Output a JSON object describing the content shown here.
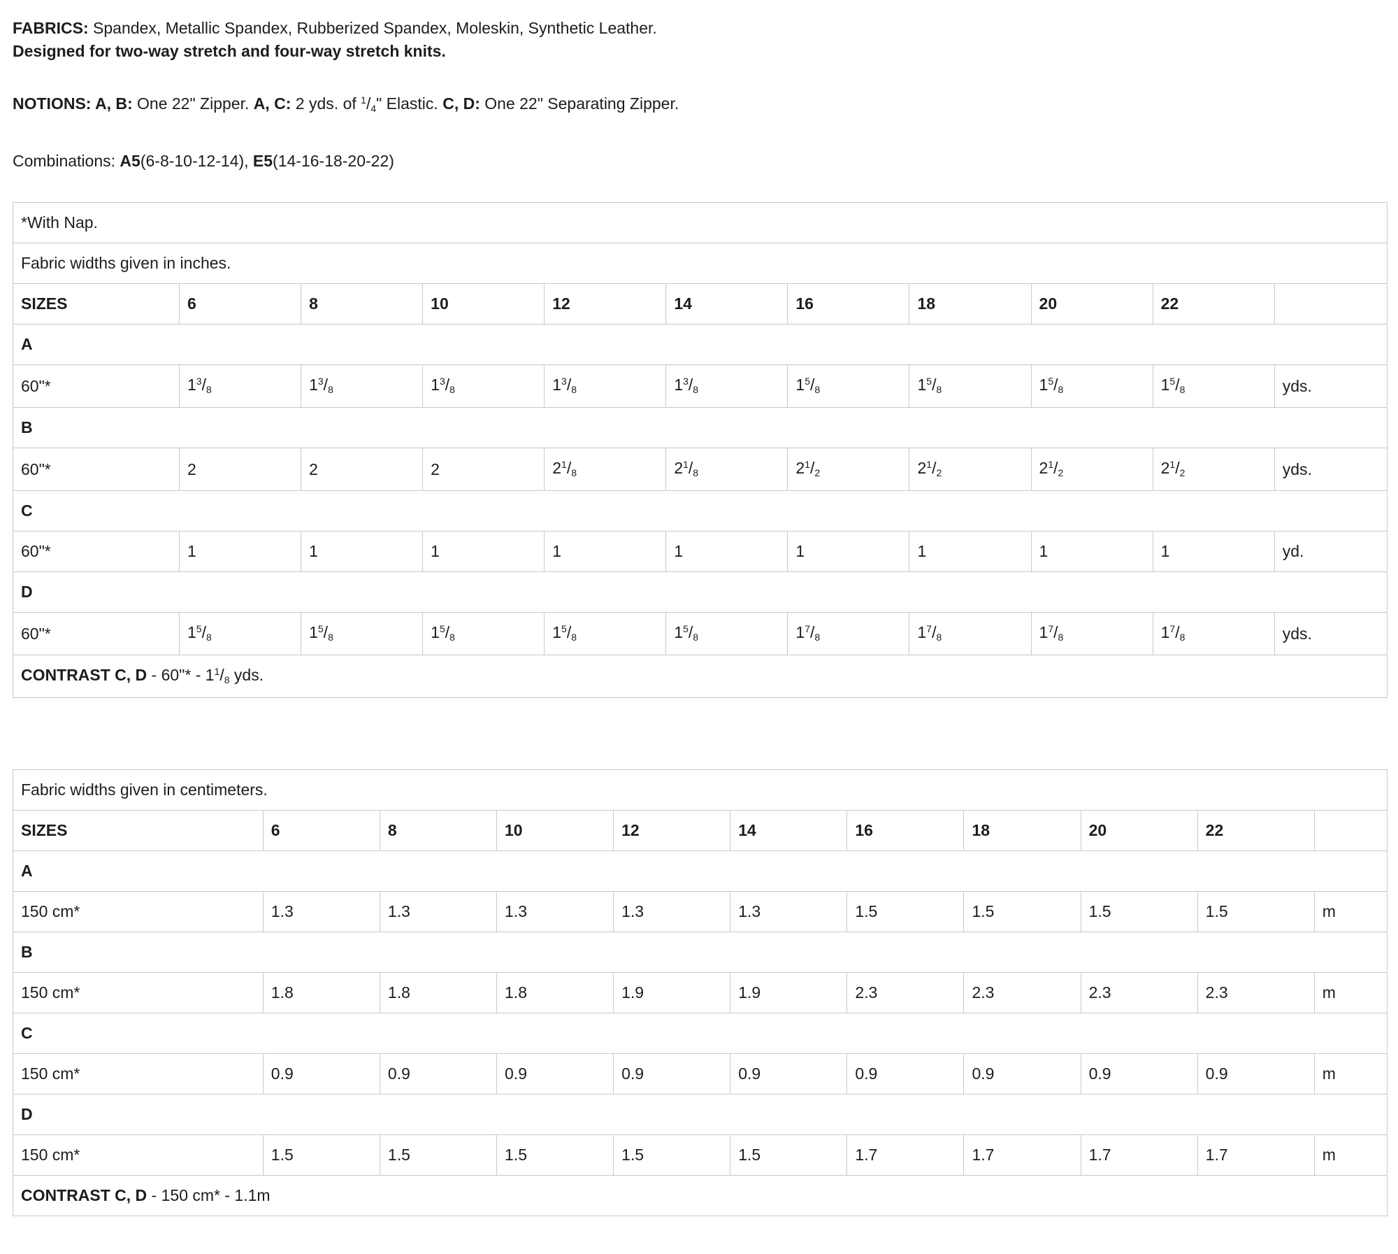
{
  "page": {
    "background": "#ffffff",
    "text_color": "#1d1d1d",
    "table_border_color": "#c9c9c9"
  },
  "intro": {
    "fabrics_line": [
      {
        "text": "FABRICS:",
        "bold": true
      },
      {
        "text": " Spandex, Metallic Spandex, Rubberized Spandex, Moleskin, Synthetic Leather.",
        "bold": false
      }
    ],
    "designed_line": [
      {
        "text": "Designed for two-way stretch and four-way stretch knits.",
        "bold": true
      }
    ],
    "notions_line": [
      {
        "text": "NOTIONS: A, B:",
        "bold": true
      },
      {
        "text": " One 22\" Zipper. ",
        "bold": false
      },
      {
        "text": "A, C:",
        "bold": true
      },
      {
        "text": " 2 yds. of ",
        "bold": false
      },
      {
        "frac": {
          "num": "1",
          "den": "4"
        }
      },
      {
        "text": "\" Elastic. ",
        "bold": false
      },
      {
        "text": "C, D:",
        "bold": true
      },
      {
        "text": " One 22\" Separating Zipper.",
        "bold": false
      }
    ],
    "combinations_line": [
      {
        "text": "Combinations: ",
        "bold": false
      },
      {
        "text": "A5",
        "bold": true
      },
      {
        "text": "(6-8-10-12-14), ",
        "bold": false
      },
      {
        "text": "E5",
        "bold": true
      },
      {
        "text": "(14-16-18-20-22)",
        "bold": false
      }
    ]
  },
  "tables": [
    {
      "name": "inches",
      "notes": [
        "*With Nap.",
        "Fabric widths given in inches."
      ],
      "sizes_label": "SIZES",
      "sizes": [
        "6",
        "8",
        "10",
        "12",
        "14",
        "16",
        "18",
        "20",
        "22"
      ],
      "sections": [
        {
          "view": "A",
          "width": "60\"*",
          "values": [
            "1 3/8",
            "1 3/8",
            "1 3/8",
            "1 3/8",
            "1 3/8",
            "1 5/8",
            "1 5/8",
            "1 5/8",
            "1 5/8"
          ],
          "unit": "yds."
        },
        {
          "view": "B",
          "width": "60\"*",
          "values": [
            "2",
            "2",
            "2",
            "2 1/8",
            "2 1/8",
            "2 1/2",
            "2 1/2",
            "2 1/2",
            "2 1/2"
          ],
          "unit": "yds."
        },
        {
          "view": "C",
          "width": "60\"*",
          "values": [
            "1",
            "1",
            "1",
            "1",
            "1",
            "1",
            "1",
            "1",
            "1"
          ],
          "unit": "yd."
        },
        {
          "view": "D",
          "width": "60\"*",
          "values": [
            "1 5/8",
            "1 5/8",
            "1 5/8",
            "1 5/8",
            "1 5/8",
            "1 7/8",
            "1 7/8",
            "1 7/8",
            "1 7/8"
          ],
          "unit": "yds."
        }
      ],
      "contrast": [
        {
          "text": "CONTRAST C, D",
          "bold": true
        },
        {
          "text": " - 60\"* - ",
          "bold": false
        },
        {
          "frac": {
            "whole": "1",
            "num": "1",
            "den": "8"
          }
        },
        {
          "text": " yds.",
          "bold": false
        }
      ]
    },
    {
      "name": "centimeters",
      "notes": [
        "Fabric widths given in centimeters."
      ],
      "sizes_label": "SIZES",
      "sizes": [
        "6",
        "8",
        "10",
        "12",
        "14",
        "16",
        "18",
        "20",
        "22"
      ],
      "sections": [
        {
          "view": "A",
          "width": "150 cm*",
          "values": [
            "1.3",
            "1.3",
            "1.3",
            "1.3",
            "1.3",
            "1.5",
            "1.5",
            "1.5",
            "1.5"
          ],
          "unit": "m"
        },
        {
          "view": "B",
          "width": "150 cm*",
          "values": [
            "1.8",
            "1.8",
            "1.8",
            "1.9",
            "1.9",
            "2.3",
            "2.3",
            "2.3",
            "2.3"
          ],
          "unit": "m"
        },
        {
          "view": "C",
          "width": "150 cm*",
          "values": [
            "0.9",
            "0.9",
            "0.9",
            "0.9",
            "0.9",
            "0.9",
            "0.9",
            "0.9",
            "0.9"
          ],
          "unit": "m"
        },
        {
          "view": "D",
          "width": "150 cm*",
          "values": [
            "1.5",
            "1.5",
            "1.5",
            "1.5",
            "1.5",
            "1.7",
            "1.7",
            "1.7",
            "1.7"
          ],
          "unit": "m"
        }
      ],
      "contrast": [
        {
          "text": "CONTRAST C, D",
          "bold": true
        },
        {
          "text": " - 150 cm* - 1.1m",
          "bold": false
        }
      ]
    }
  ]
}
